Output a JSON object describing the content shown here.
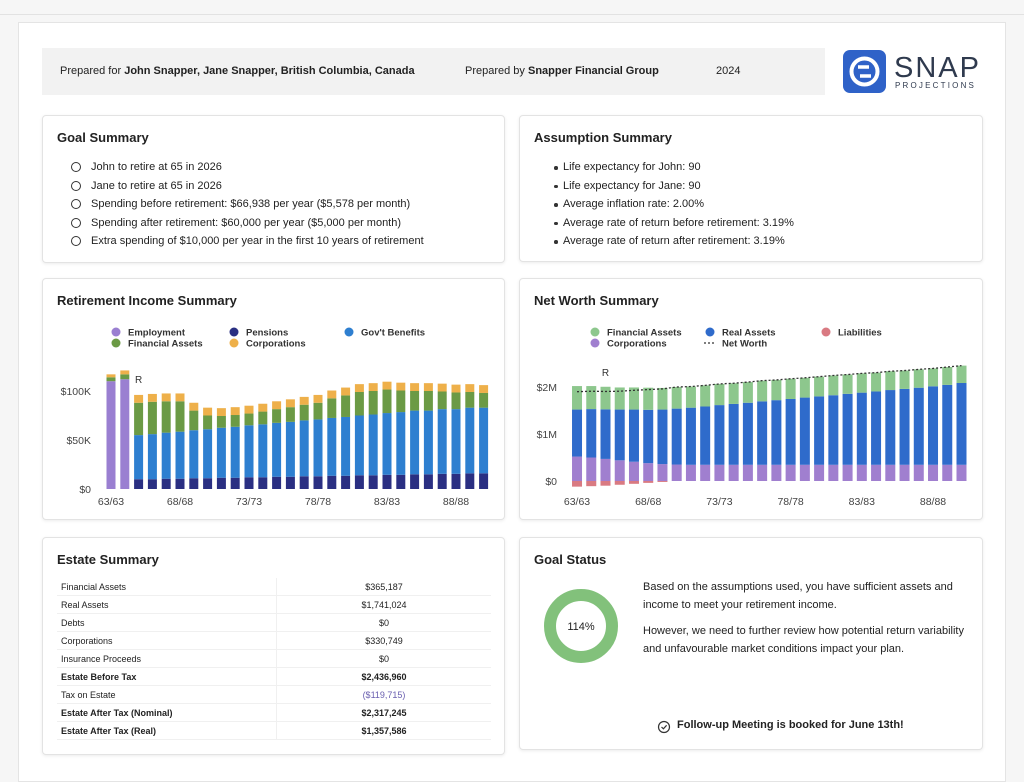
{
  "header": {
    "prepared_for_label": "Prepared for",
    "prepared_for": "John Snapper, Jane Snapper, British Columbia, Canada",
    "prepared_by_label": "Prepared by",
    "prepared_by": "Snapper Financial Group",
    "year": "2024",
    "logo_name": "SNAP",
    "logo_tagline": "PROJECTIONS"
  },
  "goal_summary": {
    "title": "Goal Summary",
    "items": [
      "John to retire at 65 in 2026",
      "Jane to retire at 65 in 2026",
      "Spending before retirement: $66,938 per year ($5,578 per month)",
      "Spending after retirement: $60,000 per year ($5,000 per month)",
      "Extra spending of $10,000 per year in the first 10 years of retirement"
    ]
  },
  "assumption_summary": {
    "title": "Assumption Summary",
    "items": [
      "Life expectancy for John: 90",
      "Life expectancy for Jane: 90",
      "Average inflation rate: 2.00%",
      "Average rate of return before retirement: 3.19%",
      "Average rate of return after retirement: 3.19%"
    ]
  },
  "chart_data": [
    {
      "type": "bar",
      "stacked": true,
      "title": "Retirement Income Summary",
      "annotation": "R",
      "categories": [
        "63/63",
        null,
        null,
        null,
        null,
        "68/68",
        null,
        null,
        null,
        null,
        "73/73",
        null,
        null,
        null,
        null,
        "78/78",
        null,
        null,
        null,
        null,
        "83/83",
        null,
        null,
        null,
        null,
        "88/88",
        null,
        null
      ],
      "series": [
        {
          "name": "Employment",
          "color": "#9a7fd1",
          "values": [
            110000,
            112000,
            0,
            0,
            0,
            0,
            0,
            0,
            0,
            0,
            0,
            0,
            0,
            0,
            0,
            0,
            0,
            0,
            0,
            0,
            0,
            0,
            0,
            0,
            0,
            0,
            0,
            0
          ]
        },
        {
          "name": "Pensions",
          "color": "#2a2f82",
          "values": [
            0,
            0,
            10000,
            10000,
            10500,
            10500,
            11000,
            11000,
            11500,
            11500,
            12000,
            12000,
            12500,
            12500,
            13000,
            13000,
            13500,
            13500,
            14000,
            14000,
            14500,
            14500,
            15000,
            15000,
            15500,
            15500,
            16000,
            16000
          ]
        },
        {
          "name": "Gov't Benefits",
          "color": "#2e7fd0",
          "values": [
            0,
            0,
            45000,
            46000,
            47000,
            48000,
            49000,
            50000,
            51000,
            52000,
            53000,
            54000,
            55000,
            56000,
            57000,
            58000,
            59000,
            60000,
            61000,
            62000,
            63000,
            64000,
            65000,
            65000,
            66000,
            66000,
            67000,
            67000
          ]
        },
        {
          "name": "Financial Assets",
          "color": "#6b9a45",
          "values": [
            4000,
            5000,
            33000,
            33000,
            32000,
            31000,
            20000,
            14000,
            12000,
            12000,
            12000,
            13000,
            14000,
            15000,
            16000,
            17000,
            20000,
            22000,
            24000,
            24000,
            24000,
            22000,
            20000,
            20000,
            18000,
            17000,
            16000,
            15000
          ]
        },
        {
          "name": "Corporations",
          "color": "#eeb04a",
          "values": [
            3000,
            4000,
            8000,
            8000,
            8000,
            8000,
            8000,
            8000,
            8000,
            8000,
            8000,
            8000,
            8000,
            8000,
            8000,
            8000,
            8000,
            8000,
            8000,
            8000,
            8000,
            8000,
            8000,
            8000,
            8000,
            8000,
            8000,
            8000
          ]
        }
      ],
      "ylim": [
        0,
        125000
      ],
      "yticks": [
        {
          "value": 0,
          "label": "$0"
        },
        {
          "value": 50000,
          "label": "$50K"
        },
        {
          "value": 100000,
          "label": "$100K"
        }
      ],
      "grid": false
    },
    {
      "type": "bar",
      "stacked": true,
      "title": "Net Worth Summary",
      "annotation": "R",
      "categories": [
        "63/63",
        null,
        null,
        null,
        null,
        "68/68",
        null,
        null,
        null,
        null,
        "73/73",
        null,
        null,
        null,
        null,
        "78/78",
        null,
        null,
        null,
        null,
        "83/83",
        null,
        null,
        null,
        null,
        "88/88",
        null,
        null
      ],
      "series": [
        {
          "name": "Corporations",
          "color": "#a07fcf",
          "values": [
            520000,
            500000,
            470000,
            440000,
            410000,
            380000,
            360000,
            350000,
            345000,
            345000,
            345000,
            345000,
            345000,
            345000,
            345000,
            345000,
            345000,
            345000,
            345000,
            345000,
            345000,
            345000,
            345000,
            345000,
            345000,
            345000,
            345000,
            345000
          ]
        },
        {
          "name": "Real Assets",
          "color": "#2f6bcb",
          "values": [
            1000000,
            1030000,
            1055000,
            1080000,
            1110000,
            1135000,
            1160000,
            1190000,
            1215000,
            1240000,
            1270000,
            1295000,
            1320000,
            1350000,
            1375000,
            1400000,
            1430000,
            1455000,
            1480000,
            1510000,
            1535000,
            1560000,
            1590000,
            1615000,
            1640000,
            1670000,
            1700000,
            1740000
          ]
        },
        {
          "name": "Financial Assets",
          "color": "#8dc78d",
          "values": [
            500000,
            490000,
            480000,
            470000,
            470000,
            470000,
            460000,
            460000,
            450000,
            450000,
            450000,
            440000,
            440000,
            440000,
            430000,
            430000,
            420000,
            420000,
            420000,
            410000,
            410000,
            400000,
            400000,
            390000,
            390000,
            380000,
            380000,
            370000
          ]
        },
        {
          "name": "Liabilities",
          "color": "#d97a82",
          "values": [
            -120000,
            -110000,
            -100000,
            -80000,
            -60000,
            -40000,
            -20000,
            0,
            0,
            0,
            0,
            0,
            0,
            0,
            0,
            0,
            0,
            0,
            0,
            0,
            0,
            0,
            0,
            0,
            0,
            0,
            0,
            0
          ]
        },
        {
          "name": "Net Worth",
          "type": "line",
          "color": "#333333",
          "values": [
            1900000,
            1910000,
            1905000,
            1910000,
            1930000,
            1945000,
            1960000,
            2000000,
            2010000,
            2035000,
            2065000,
            2080000,
            2105000,
            2135000,
            2150000,
            2175000,
            2195000,
            2220000,
            2245000,
            2265000,
            2290000,
            2305000,
            2335000,
            2350000,
            2375000,
            2395000,
            2425000,
            2455000
          ]
        }
      ],
      "ylim": [
        -200000,
        2500000
      ],
      "yticks": [
        {
          "value": 0,
          "label": "$0"
        },
        {
          "value": 1000000,
          "label": "$1M"
        },
        {
          "value": 2000000,
          "label": "$2M"
        }
      ],
      "grid": false
    }
  ],
  "estate_summary": {
    "title": "Estate Summary",
    "rows": [
      {
        "label": "Financial Assets",
        "value": "$365,187"
      },
      {
        "label": "Real Assets",
        "value": "$1,741,024"
      },
      {
        "label": "Debts",
        "value": "$0"
      },
      {
        "label": "Corporations",
        "value": "$330,749"
      },
      {
        "label": "Insurance Proceeds",
        "value": "$0"
      },
      {
        "label": "Estate Before Tax",
        "value": "$2,436,960"
      },
      {
        "label": "Tax on Estate",
        "value": "($119,715)"
      },
      {
        "label": "Estate After Tax (Nominal)",
        "value": "$2,317,245"
      },
      {
        "label": "Estate After Tax (Real)",
        "value": "$1,357,586"
      }
    ]
  },
  "goal_status": {
    "title": "Goal Status",
    "percent": "114%",
    "paragraphs": [
      "Based on the assumptions used, you have sufficient assets and income to meet your retirement income.",
      "However, we need to further review how potential return variability and unfavourable market conditions impact your plan."
    ],
    "note": "Follow-up Meeting is booked for June 13th!"
  }
}
